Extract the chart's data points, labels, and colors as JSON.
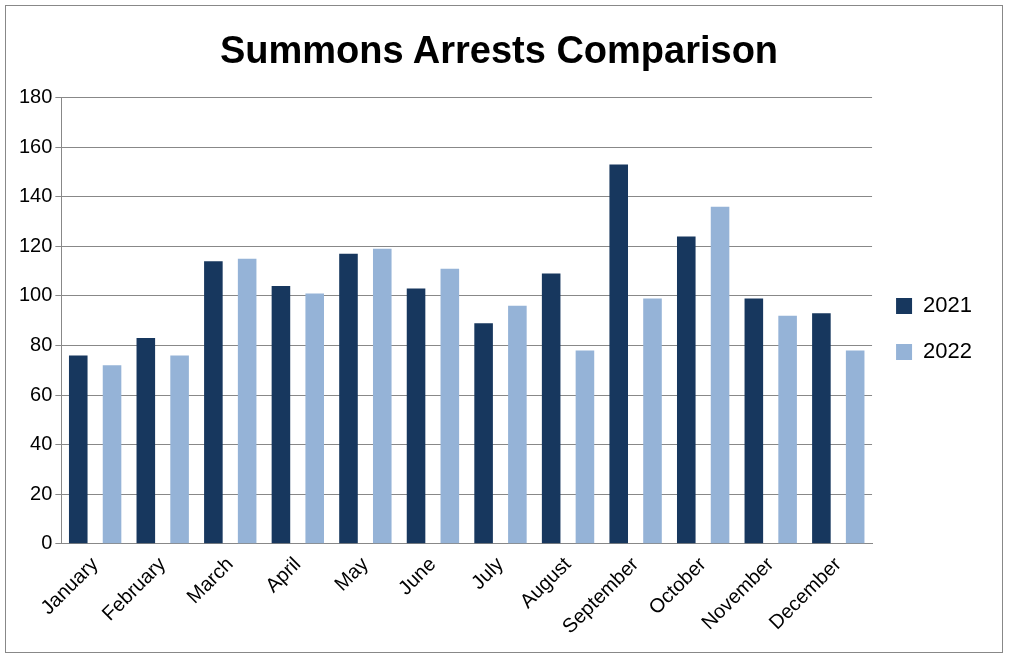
{
  "chart_data": {
    "type": "bar",
    "title": "Summons Arrests Comparison",
    "categories": [
      "January",
      "February",
      "March",
      "April",
      "May",
      "June",
      "July",
      "August",
      "September",
      "October",
      "November",
      "December"
    ],
    "series": [
      {
        "name": "2021",
        "color": "#17375e",
        "values": [
          76,
          83,
          114,
          104,
          117,
          103,
          89,
          109,
          153,
          124,
          99,
          93
        ]
      },
      {
        "name": "2022",
        "color": "#95b3d7",
        "values": [
          72,
          76,
          115,
          101,
          119,
          111,
          96,
          78,
          99,
          136,
          92,
          78
        ]
      }
    ],
    "ylim": [
      0,
      180
    ],
    "yticks": [
      0,
      20,
      40,
      60,
      80,
      100,
      120,
      140,
      160,
      180
    ],
    "grid": "y",
    "legend": "right"
  }
}
